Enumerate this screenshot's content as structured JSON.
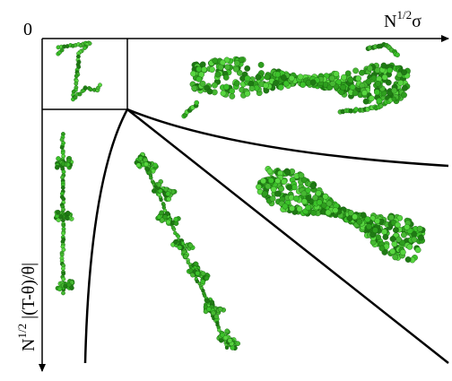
{
  "origin_label": "0",
  "x_axis_label": {
    "base": "N",
    "superscript": "1/2",
    "rest": "σ"
  },
  "y_axis_label": {
    "base": "N",
    "superscript": "1/2",
    "rest": " |(T-θ)/θ|"
  }
}
